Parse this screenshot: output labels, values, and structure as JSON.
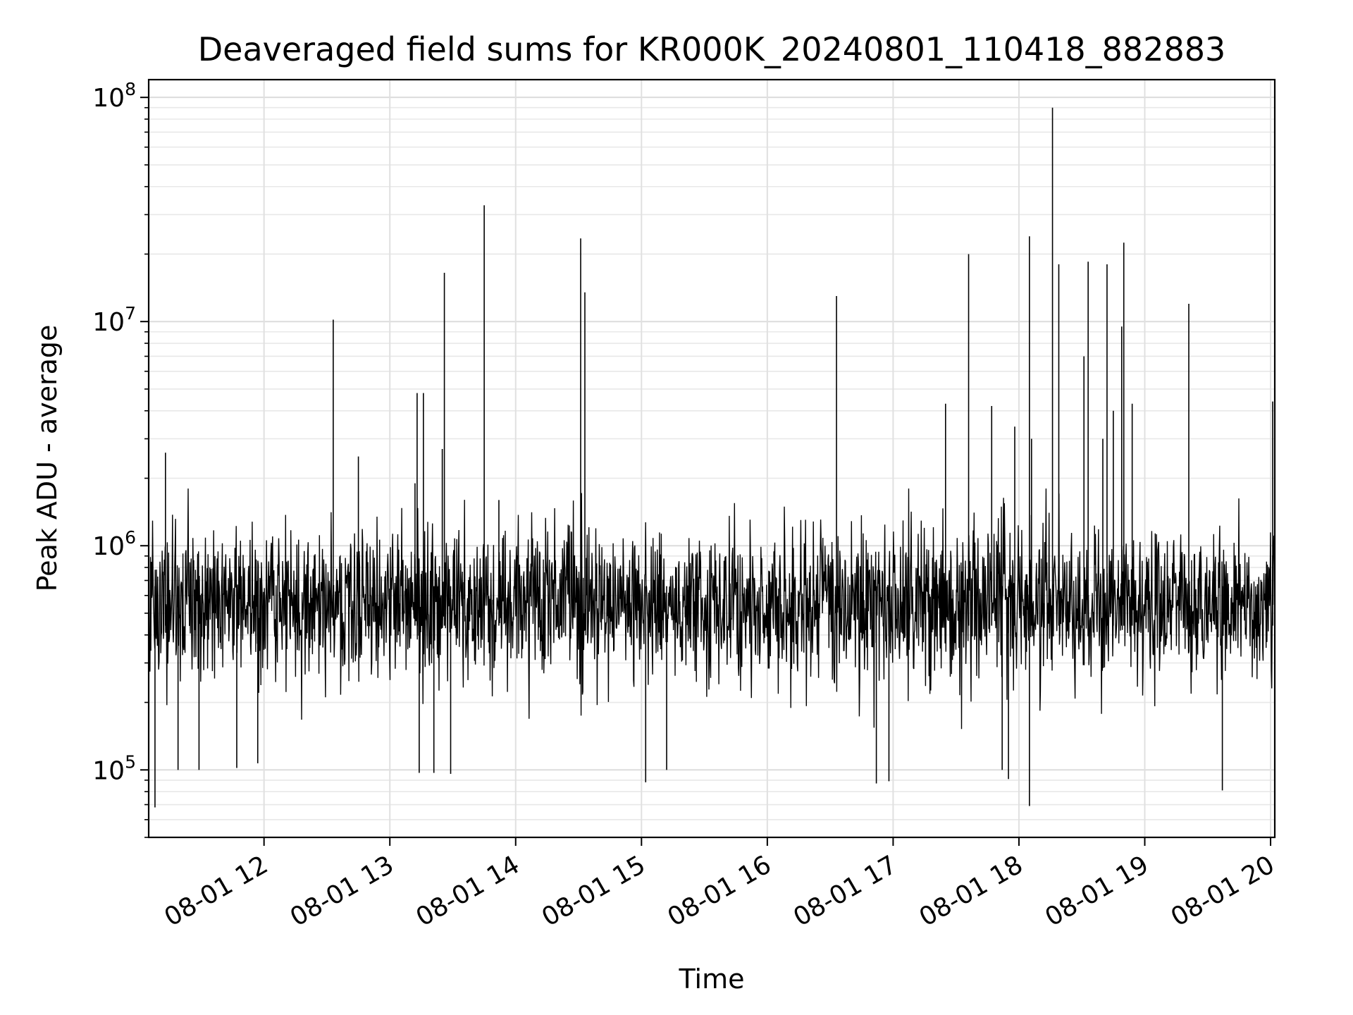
{
  "chart_data": {
    "type": "line",
    "title": "Deaveraged field sums for KR000K_20240801_110418_882883",
    "xlabel": "Time",
    "ylabel": "Peak ADU - average",
    "yscale": "log",
    "ylim": [
      50000,
      120000000
    ],
    "xlim": [
      "08-01 11:05",
      "08-01 20:02"
    ],
    "x_ticks": [
      "08-01 12",
      "08-01 13",
      "08-01 14",
      "08-01 15",
      "08-01 16",
      "08-01 17",
      "08-01 18",
      "08-01 19",
      "08-01 20"
    ],
    "y_ticks": [
      {
        "base": "10",
        "exp": "5"
      },
      {
        "base": "10",
        "exp": "6"
      },
      {
        "base": "10",
        "exp": "7"
      },
      {
        "base": "10",
        "exp": "8"
      }
    ],
    "grid": true,
    "line_color": "#000000",
    "baseline_typical": 550000,
    "spikes_up": [
      {
        "x": "08-01 11:13",
        "y": 2600000
      },
      {
        "x": "08-01 12:33",
        "y": 10200000
      },
      {
        "x": "08-01 12:45",
        "y": 2500000
      },
      {
        "x": "08-01 13:12",
        "y": 1900000
      },
      {
        "x": "08-01 13:13",
        "y": 4800000
      },
      {
        "x": "08-01 13:16",
        "y": 4800000
      },
      {
        "x": "08-01 13:25",
        "y": 2700000
      },
      {
        "x": "08-01 13:26",
        "y": 16500000
      },
      {
        "x": "08-01 13:45",
        "y": 33000000
      },
      {
        "x": "08-01 13:52",
        "y": 1600000
      },
      {
        "x": "08-01 14:31",
        "y": 23500000
      },
      {
        "x": "08-01 14:33",
        "y": 13500000
      },
      {
        "x": "08-01 16:33",
        "y": 13000000
      },
      {
        "x": "08-01 17:25",
        "y": 4300000
      },
      {
        "x": "08-01 17:36",
        "y": 20000000
      },
      {
        "x": "08-01 17:47",
        "y": 4200000
      },
      {
        "x": "08-01 17:58",
        "y": 3400000
      },
      {
        "x": "08-01 18:05",
        "y": 24000000
      },
      {
        "x": "08-01 18:06",
        "y": 3000000
      },
      {
        "x": "08-01 18:16",
        "y": 90000000
      },
      {
        "x": "08-01 18:19",
        "y": 18000000
      },
      {
        "x": "08-01 18:31",
        "y": 7000000
      },
      {
        "x": "08-01 18:33",
        "y": 18500000
      },
      {
        "x": "08-01 18:40",
        "y": 3000000
      },
      {
        "x": "08-01 18:42",
        "y": 18000000
      },
      {
        "x": "08-01 18:45",
        "y": 4000000
      },
      {
        "x": "08-01 18:49",
        "y": 9500000
      },
      {
        "x": "08-01 18:50",
        "y": 22500000
      },
      {
        "x": "08-01 18:54",
        "y": 4300000
      },
      {
        "x": "08-01 19:21",
        "y": 12000000
      },
      {
        "x": "08-01 20:01",
        "y": 4400000
      }
    ],
    "spikes_down": [
      {
        "x": "08-01 11:08",
        "y": 68000.0
      },
      {
        "x": "08-01 11:19",
        "y": 100000
      },
      {
        "x": "08-01 11:29",
        "y": 100000
      },
      {
        "x": "08-01 11:47",
        "y": 102000
      },
      {
        "x": "08-01 11:57",
        "y": 107000
      },
      {
        "x": "08-01 13:14",
        "y": 97000
      },
      {
        "x": "08-01 13:21",
        "y": 97000
      },
      {
        "x": "08-01 13:29",
        "y": 96000
      },
      {
        "x": "08-01 15:02",
        "y": 88000
      },
      {
        "x": "08-01 15:12",
        "y": 100000
      },
      {
        "x": "08-01 16:52",
        "y": 87000
      },
      {
        "x": "08-01 16:58",
        "y": 89000
      },
      {
        "x": "08-01 17:52",
        "y": 100000
      },
      {
        "x": "08-01 17:55",
        "y": 91000
      },
      {
        "x": "08-01 18:05",
        "y": 69000
      },
      {
        "x": "08-01 19:37",
        "y": 81000
      }
    ]
  }
}
